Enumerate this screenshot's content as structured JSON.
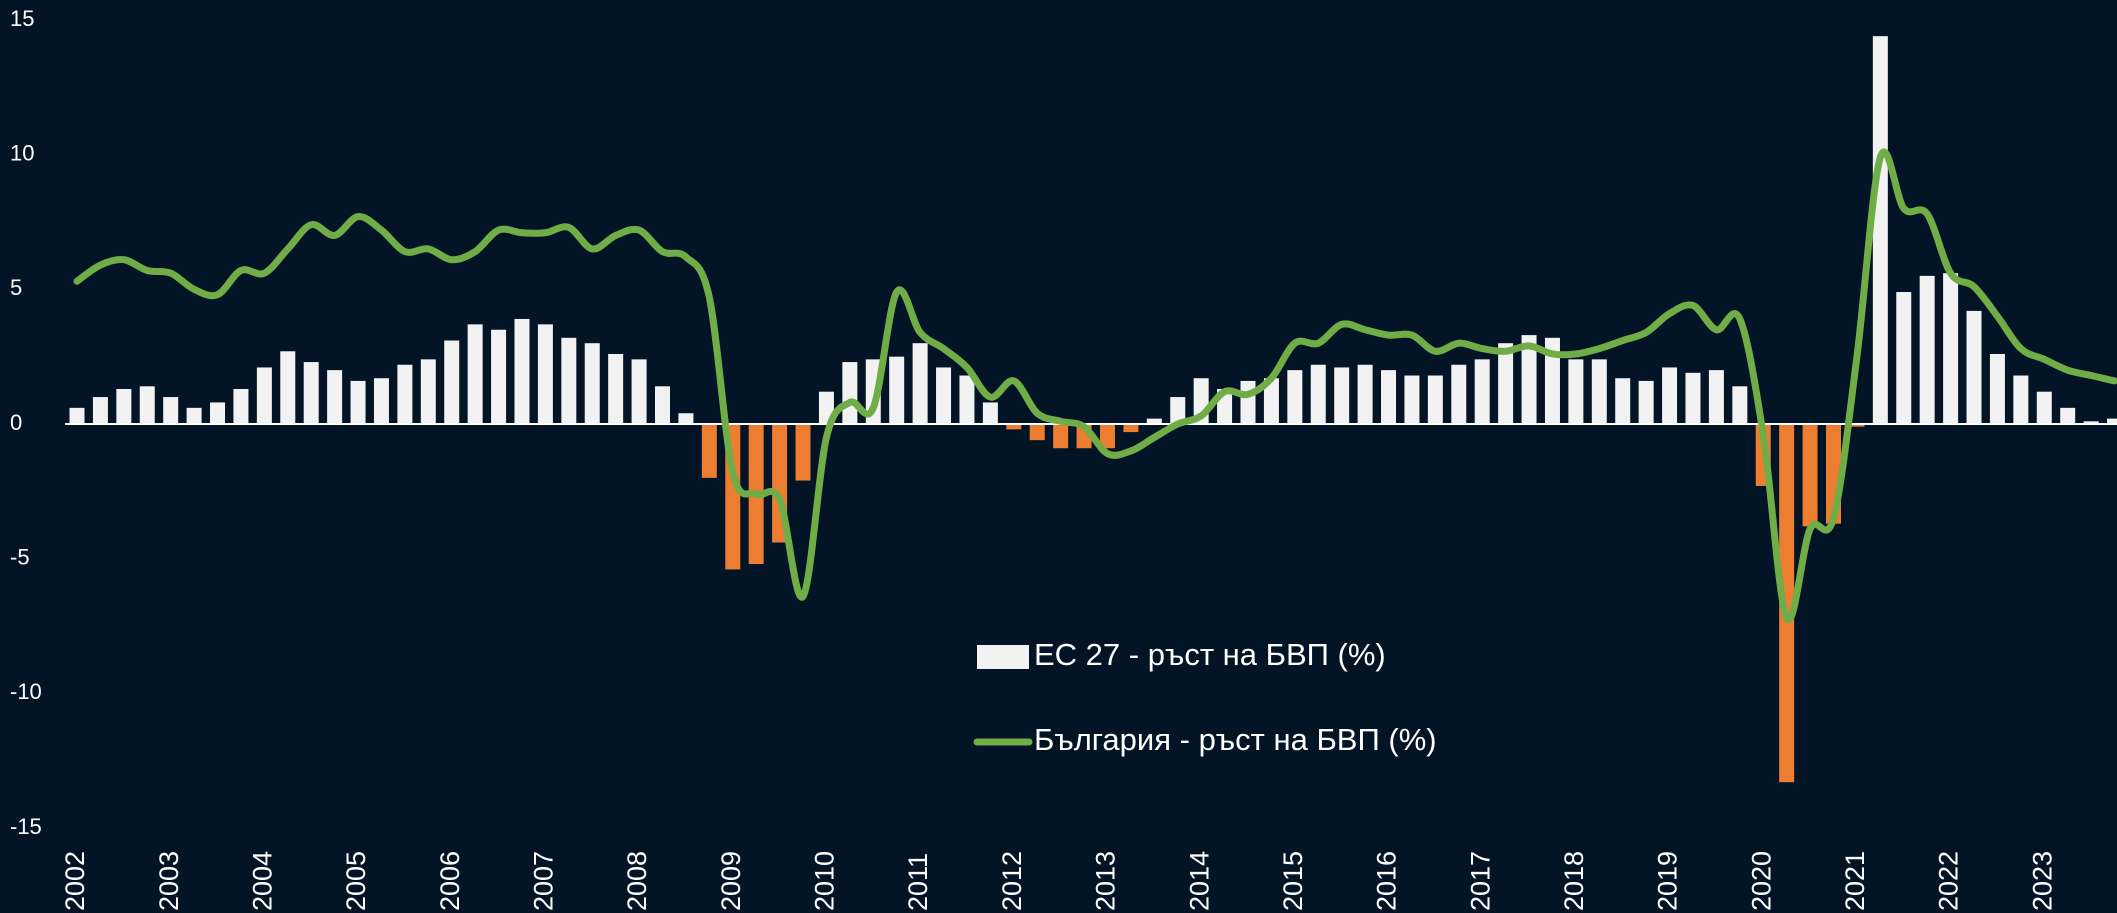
{
  "chart_data": {
    "type": "bar_line",
    "categories": [
      "2002",
      null,
      null,
      null,
      "2003",
      null,
      null,
      null,
      "2004",
      null,
      null,
      null,
      "2005",
      null,
      null,
      null,
      "2006",
      null,
      null,
      null,
      "2007",
      null,
      null,
      null,
      "2008",
      null,
      null,
      null,
      "2009",
      null,
      null,
      null,
      "2010",
      null,
      null,
      null,
      "2011",
      null,
      null,
      null,
      "2012",
      null,
      null,
      null,
      "2013",
      null,
      null,
      null,
      "2014",
      null,
      null,
      null,
      "2015",
      null,
      null,
      null,
      "2016",
      null,
      null,
      null,
      "2017",
      null,
      null,
      null,
      "2018",
      null,
      null,
      null,
      "2019",
      null,
      null,
      null,
      "2020",
      null,
      null,
      null,
      "2021",
      null,
      null,
      null,
      "2022",
      null,
      null,
      null,
      "2023",
      null,
      null,
      null
    ],
    "series": [
      {
        "name": "ЕС 27 - ръст на БВП (%)",
        "type": "bar",
        "color": "#f2f2f2",
        "negative_color": "#ed7d31",
        "values": [
          0.6,
          1.0,
          1.3,
          1.4,
          1.0,
          0.6,
          0.8,
          1.3,
          2.1,
          2.7,
          2.3,
          2.0,
          1.6,
          1.7,
          2.2,
          2.4,
          3.1,
          3.7,
          3.5,
          3.9,
          3.7,
          3.2,
          3.0,
          2.6,
          2.4,
          1.4,
          0.4,
          -2.0,
          -5.4,
          -5.2,
          -4.4,
          -2.1,
          1.2,
          2.3,
          2.4,
          2.5,
          3.0,
          2.1,
          1.8,
          0.8,
          -0.2,
          -0.6,
          -0.9,
          -0.9,
          -0.9,
          -0.3,
          0.2,
          1.0,
          1.7,
          1.3,
          1.6,
          1.7,
          2.0,
          2.2,
          2.1,
          2.2,
          2.0,
          1.8,
          1.8,
          2.2,
          2.4,
          3.0,
          3.3,
          3.2,
          2.4,
          2.4,
          1.7,
          1.6,
          2.1,
          1.9,
          2.0,
          1.4,
          -2.3,
          -13.3,
          -3.8,
          -3.7,
          -0.1,
          14.4,
          4.9,
          5.5,
          5.6,
          4.2,
          2.6,
          1.8,
          1.2,
          0.6,
          0.1,
          0.2
        ]
      },
      {
        "name": "България - ръст на БВП (%)",
        "type": "line",
        "color": "#70ad47",
        "values": [
          5.3,
          5.9,
          6.1,
          5.7,
          5.6,
          5.0,
          4.8,
          5.7,
          5.6,
          6.5,
          7.4,
          7.0,
          7.7,
          7.2,
          6.4,
          6.5,
          6.1,
          6.4,
          7.2,
          7.1,
          7.1,
          7.3,
          6.5,
          7.0,
          7.2,
          6.4,
          6.2,
          4.7,
          -1.8,
          -2.6,
          -2.8,
          -6.4,
          -0.5,
          0.8,
          0.6,
          4.9,
          3.4,
          2.8,
          2.1,
          1.0,
          1.6,
          0.4,
          0.1,
          -0.1,
          -1.1,
          -1.0,
          -0.5,
          0.0,
          0.3,
          1.2,
          1.1,
          1.7,
          3.0,
          3.0,
          3.7,
          3.5,
          3.3,
          3.3,
          2.7,
          3.0,
          2.8,
          2.7,
          2.9,
          2.6,
          2.6,
          2.8,
          3.1,
          3.4,
          4.1,
          4.4,
          3.5,
          3.9,
          -0.4,
          -7.2,
          -3.9,
          -3.5,
          2.5,
          9.9,
          8.0,
          7.8,
          5.6,
          5.1,
          4.0,
          2.8,
          2.4,
          2.0,
          1.8,
          1.6
        ]
      }
    ],
    "ylim": [
      -15,
      15
    ],
    "yticks": [
      15,
      10,
      5,
      0,
      -5,
      -10,
      -15
    ],
    "legend": "center"
  }
}
